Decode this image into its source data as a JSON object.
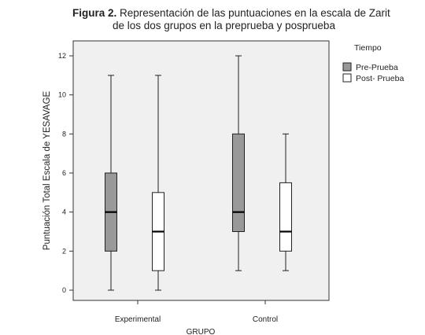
{
  "caption": {
    "lead": "Figura 2.",
    "line1": "Representación de las puntuaciones en la escala de Zarit",
    "line2": "de los dos grupos en la preprueba y posprueba"
  },
  "chart_data": {
    "type": "boxplot",
    "ylabel": "Puntuación Total Escala de YESAVAGE",
    "xlabel": "GRUPO",
    "ylim": [
      0,
      12
    ],
    "yticks": [
      0,
      2,
      4,
      6,
      8,
      10,
      12
    ],
    "categories": [
      "Experimental",
      "Control"
    ],
    "legend_title": "Tiempo",
    "legend_position": "right",
    "grid": false,
    "series": [
      {
        "name": "Pre-Prueba",
        "color": "#999999",
        "boxes": [
          {
            "min": 0,
            "q1": 2,
            "median": 4,
            "q3": 6,
            "max": 11
          },
          {
            "min": 1,
            "q1": 3,
            "median": 4,
            "q3": 8,
            "max": 12
          }
        ]
      },
      {
        "name": "Post- Prueba",
        "color": "#ffffff",
        "boxes": [
          {
            "min": 0,
            "q1": 1,
            "median": 3,
            "q3": 5,
            "max": 11
          },
          {
            "min": 1,
            "q1": 2,
            "median": 3,
            "q3": 5.5,
            "max": 8
          }
        ]
      }
    ],
    "plot_background": "#f0f0f0"
  }
}
